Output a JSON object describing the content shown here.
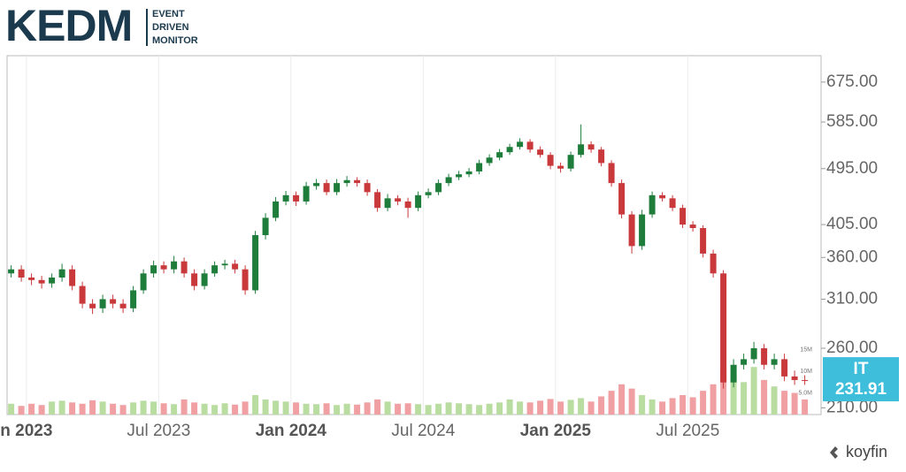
{
  "header": {
    "logo": "KEDM",
    "tagline": [
      "EVENT",
      "DRIVEN",
      "MONITOR"
    ]
  },
  "footer": {
    "brand": "koyfin"
  },
  "chart_data": {
    "type": "candlestick",
    "ticker": "IT",
    "last_price": 231.91,
    "x": [
      0,
      1,
      2,
      3,
      4,
      5,
      6,
      7,
      8,
      9,
      10,
      11,
      12,
      13,
      14,
      15,
      16,
      17,
      18,
      19,
      20,
      21,
      22,
      23,
      24,
      25,
      26,
      27,
      28,
      29,
      30,
      31,
      32,
      33,
      34,
      35,
      36,
      37,
      38,
      39,
      40,
      41,
      42,
      43,
      44,
      45,
      46,
      47,
      48,
      49,
      50,
      51,
      52,
      53,
      54,
      55,
      56,
      57,
      58,
      59,
      60,
      61,
      62,
      63,
      64,
      65,
      66,
      67,
      68,
      69,
      70,
      71,
      72,
      73,
      74,
      75,
      76,
      77,
      78
    ],
    "open": [
      340,
      345,
      335,
      332,
      328,
      335,
      345,
      325,
      305,
      300,
      310,
      305,
      300,
      320,
      340,
      350,
      345,
      355,
      340,
      325,
      340,
      350,
      352,
      345,
      320,
      390,
      415,
      440,
      450,
      440,
      465,
      470,
      455,
      470,
      475,
      470,
      455,
      430,
      445,
      440,
      430,
      450,
      455,
      470,
      480,
      485,
      490,
      505,
      515,
      525,
      535,
      545,
      530,
      520,
      500,
      495,
      520,
      540,
      530,
      505,
      470,
      420,
      375,
      420,
      450,
      445,
      430,
      405,
      400,
      365,
      340,
      230,
      245,
      250,
      260,
      245,
      250,
      235,
      232
    ],
    "high": [
      350,
      350,
      340,
      337,
      340,
      352,
      350,
      330,
      310,
      315,
      315,
      310,
      325,
      345,
      356,
      355,
      362,
      360,
      345,
      345,
      355,
      357,
      357,
      350,
      396,
      422,
      447,
      457,
      456,
      472,
      477,
      476,
      477,
      482,
      480,
      476,
      460,
      452,
      450,
      446,
      456,
      461,
      476,
      486,
      491,
      496,
      511,
      521,
      531,
      541,
      552,
      550,
      536,
      525,
      506,
      526,
      580,
      546,
      535,
      510,
      476,
      425,
      427,
      456,
      455,
      450,
      435,
      410,
      404,
      370,
      344,
      250,
      255,
      266,
      264,
      255,
      255,
      240,
      236
    ],
    "low": [
      335,
      330,
      326,
      322,
      323,
      330,
      320,
      300,
      294,
      295,
      300,
      295,
      296,
      316,
      335,
      340,
      340,
      335,
      320,
      321,
      336,
      345,
      340,
      315,
      316,
      384,
      410,
      434,
      433,
      435,
      459,
      450,
      450,
      464,
      464,
      449,
      424,
      425,
      434,
      415,
      425,
      445,
      450,
      465,
      475,
      480,
      485,
      500,
      510,
      520,
      530,
      524,
      515,
      494,
      488,
      490,
      515,
      524,
      499,
      464,
      414,
      365,
      370,
      415,
      440,
      425,
      400,
      395,
      360,
      335,
      225,
      226,
      241,
      246,
      241,
      241,
      231,
      228,
      228
    ],
    "close": [
      345,
      335,
      332,
      328,
      335,
      345,
      325,
      305,
      300,
      310,
      305,
      300,
      320,
      340,
      350,
      345,
      355,
      340,
      325,
      340,
      350,
      352,
      345,
      320,
      390,
      415,
      440,
      450,
      440,
      465,
      470,
      455,
      470,
      475,
      470,
      455,
      430,
      445,
      440,
      430,
      450,
      455,
      470,
      480,
      485,
      490,
      505,
      515,
      525,
      535,
      545,
      530,
      520,
      500,
      495,
      520,
      540,
      530,
      505,
      470,
      420,
      375,
      420,
      450,
      445,
      430,
      405,
      400,
      365,
      340,
      230,
      245,
      250,
      260,
      245,
      250,
      235,
      232,
      231.91
    ],
    "volume": [
      2.5,
      2,
      2.5,
      2.2,
      3,
      3.2,
      2.8,
      2.5,
      3.3,
      3,
      2.5,
      2.2,
      2.8,
      3.2,
      3,
      2.6,
      2.4,
      3.5,
      2.8,
      2.5,
      2.2,
      2.6,
      2.3,
      3,
      4.5,
      3.5,
      3.2,
      3,
      2.8,
      2.5,
      2.4,
      2.6,
      2.2,
      2.5,
      2.3,
      2.8,
      3.5,
      3,
      2.5,
      2.6,
      2.4,
      2.2,
      2.5,
      2.8,
      2.6,
      2.4,
      2.2,
      2.5,
      2.8,
      3.5,
      3,
      2.8,
      3.2,
      3.6,
      3,
      3.4,
      3.8,
      3,
      4.2,
      5.5,
      7,
      6,
      4.5,
      3.5,
      3,
      3.8,
      4.5,
      4,
      5.5,
      7,
      10.5,
      9,
      7.5,
      11,
      8,
      6.5,
      5.5,
      5,
      3.5
    ],
    "up_color": "#1f7d3c",
    "down_color": "#c9383a",
    "volume_up_color": "#b9dca0",
    "volume_down_color": "#f0a0a3",
    "label_color": "#3fbedc",
    "log_scale": true,
    "ylim": [
      205,
      742
    ],
    "yticks": [
      {
        "value": 210,
        "label": "210.00"
      },
      {
        "value": 260,
        "label": "260.00"
      },
      {
        "value": 310,
        "label": "310.00"
      },
      {
        "value": 360,
        "label": "360.00"
      },
      {
        "value": 405,
        "label": "405.00"
      },
      {
        "value": 495,
        "label": "495.00"
      },
      {
        "value": 585,
        "label": "585.00"
      },
      {
        "value": 675,
        "label": "675.00"
      }
    ],
    "y2lim": [
      0,
      83
    ],
    "y2ticks": [
      {
        "value": 5,
        "label": "5.0M"
      },
      {
        "value": 10,
        "label": "10M"
      },
      {
        "value": 15,
        "label": "15M"
      }
    ],
    "xlim": [
      -0.4,
      79.6
    ],
    "xticks": [
      {
        "value": 1.5,
        "label": "n 2023"
      },
      {
        "value": 14.5,
        "label": "Jul 2023"
      },
      {
        "value": 27.5,
        "label": "Jan 2024"
      },
      {
        "value": 40.5,
        "label": "Jul 2024"
      },
      {
        "value": 53.5,
        "label": "Jan 2025"
      },
      {
        "value": 66.5,
        "label": "Jul 2025"
      }
    ],
    "grid": true
  }
}
